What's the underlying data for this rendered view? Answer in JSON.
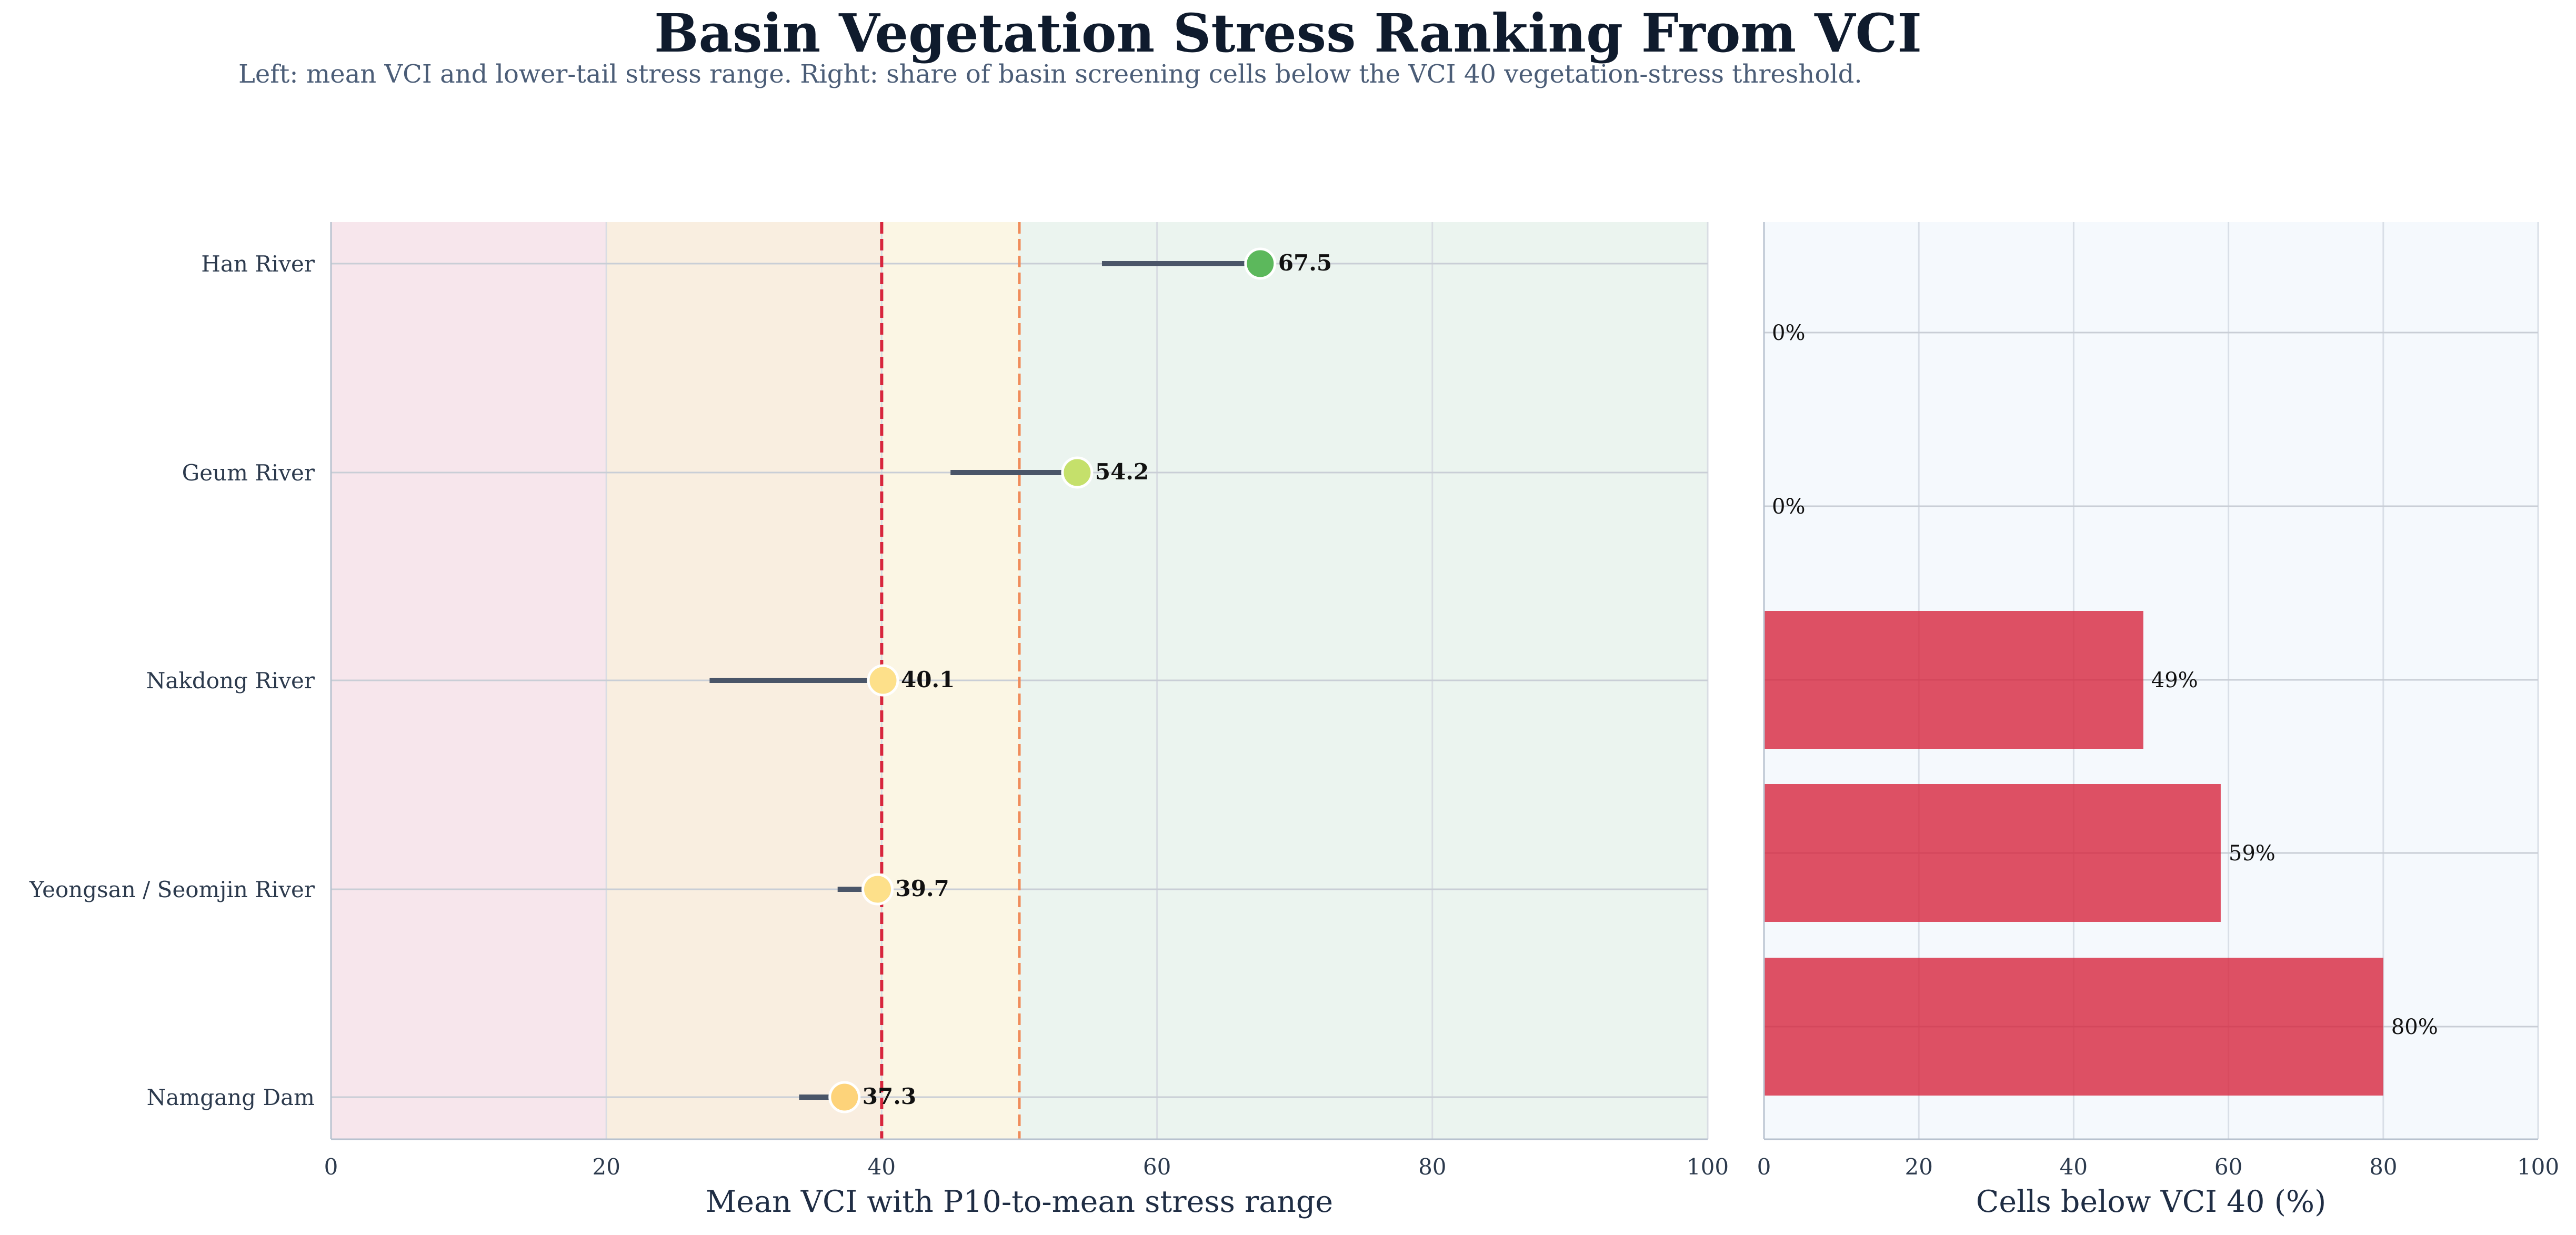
{
  "title": "Basin Vegetation Stress Ranking From VCI",
  "subtitle": "Left: mean VCI and lower-tail stress range. Right: share of basin screening cells below the VCI 40 vegetation-stress threshold.",
  "chart_data": [
    {
      "type": "dot-range",
      "xlabel": "Mean VCI with P10-to-mean stress range",
      "xlim": [
        0,
        100
      ],
      "xticks": [
        0,
        20,
        40,
        60,
        80,
        100
      ],
      "categories": [
        "Han River",
        "Geum River",
        "Nakdong River",
        "Yeongsan / Seomjin River",
        "Namgang Dam"
      ],
      "mean": [
        67.5,
        54.2,
        40.1,
        39.7,
        37.3
      ],
      "p10": [
        56.0,
        45.0,
        27.5,
        36.8,
        34.0
      ],
      "value_labels": [
        "67.5",
        "54.2",
        "40.1",
        "39.7",
        "37.3"
      ],
      "point_colors": [
        "#5cb85c",
        "#c5e06b",
        "#fde08a",
        "#fde08a",
        "#fdd37a"
      ],
      "range_color": "#4a5568",
      "threshold_lines": [
        {
          "x": 40,
          "color": "#d7263d",
          "style": "dashed"
        },
        {
          "x": 50,
          "color": "#f08c5a",
          "style": "dashed"
        }
      ],
      "bands": [
        {
          "from": 0,
          "to": 20,
          "color": "#f7e6ec"
        },
        {
          "from": 20,
          "to": 40,
          "color": "#f9eee0"
        },
        {
          "from": 40,
          "to": 50,
          "color": "#fbf6e4"
        },
        {
          "from": 50,
          "to": 100,
          "color": "#ebf4ef"
        }
      ],
      "grid": true
    },
    {
      "type": "bar",
      "orientation": "horizontal",
      "xlabel": "Cells below VCI 40 (%)",
      "xlim": [
        0,
        100
      ],
      "xticks": [
        0,
        20,
        40,
        60,
        80,
        100
      ],
      "categories": [
        "Han River",
        "Geum River",
        "Nakdong River",
        "Yeongsan / Seomjin River",
        "Namgang Dam"
      ],
      "values": [
        0,
        0,
        49,
        59,
        80
      ],
      "value_labels": [
        "0%",
        "0%",
        "49%",
        "59%",
        "80%"
      ],
      "bar_color": "#d7263d",
      "background": "#f5f9fd",
      "grid": true
    }
  ]
}
